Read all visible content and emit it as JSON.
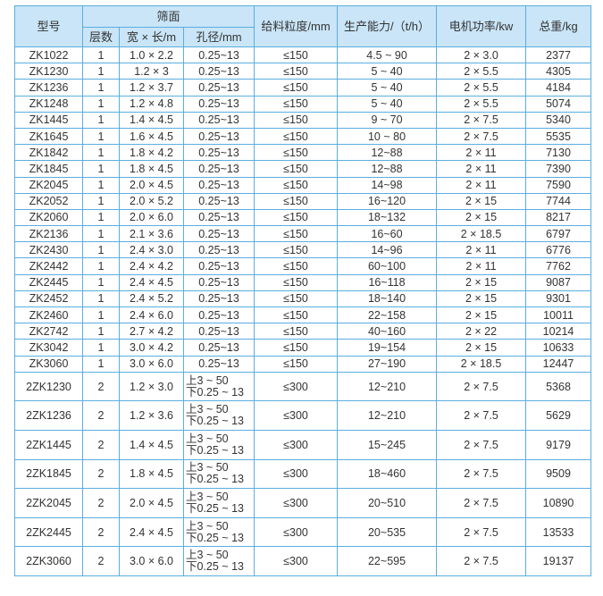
{
  "table": {
    "headers": {
      "model": "型号",
      "screen_surface": "筛面",
      "layers": "层数",
      "size": "宽 × 长/m",
      "aperture": "孔径/mm",
      "feed_size": "给料粒度/mm",
      "capacity": "生产能力/（t/h）",
      "motor_power": "电机功率/kw",
      "weight": "总重/kg"
    },
    "single_rows": [
      [
        "ZK1022",
        "1",
        "1.0 × 2.2",
        "0.25~13",
        "≤150",
        "4.5 ~ 90",
        "2 × 3.0",
        "2377"
      ],
      [
        "ZK1230",
        "1",
        "1.2 × 3",
        "0.25~13",
        "≤150",
        "5 ~ 40",
        "2 × 5.5",
        "4305"
      ],
      [
        "ZK1236",
        "1",
        "1.2 × 3.7",
        "0.25~13",
        "≤150",
        "5 ~ 40",
        "2 × 5.5",
        "4184"
      ],
      [
        "ZK1248",
        "1",
        "1.2 × 4.8",
        "0.25~13",
        "≤150",
        "5 ~ 40",
        "2 × 5.5",
        "5074"
      ],
      [
        "ZK1445",
        "1",
        "1.4 × 4.5",
        "0.25~13",
        "≤150",
        "9 ~ 70",
        "2 × 7.5",
        "5340"
      ],
      [
        "ZK1645",
        "1",
        "1.6 × 4.5",
        "0.25~13",
        "≤150",
        "10 ~ 80",
        "2 × 7.5",
        "5535"
      ],
      [
        "ZK1842",
        "1",
        "1.8 × 4.2",
        "0.25~13",
        "≤150",
        "12~88",
        "2 × 11",
        "7130"
      ],
      [
        "ZK1845",
        "1",
        "1.8 × 4.5",
        "0.25~13",
        "≤150",
        "12~88",
        "2 × 11",
        "7390"
      ],
      [
        "ZK2045",
        "1",
        "2.0 × 4.5",
        "0.25~13",
        "≤150",
        "14~98",
        "2 × 11",
        "7590"
      ],
      [
        "ZK2052",
        "1",
        "2.0 × 5.2",
        "0.25~13",
        "≤150",
        "16~120",
        "2 × 15",
        "7744"
      ],
      [
        "ZK2060",
        "1",
        "2.0 × 6.0",
        "0.25~13",
        "≤150",
        "18~132",
        "2 × 15",
        "8217"
      ],
      [
        "ZK2136",
        "1",
        "2.1 × 3.6",
        "0.25~13",
        "≤150",
        "16~60",
        "2 × 18.5",
        "6797"
      ],
      [
        "ZK2430",
        "1",
        "2.4 × 3.0",
        "0.25~13",
        "≤150",
        "14~96",
        "2 × 11",
        "6776"
      ],
      [
        "ZK2442",
        "1",
        "2.4 × 4.2",
        "0.25~13",
        "≤150",
        "60~100",
        "2 × 11",
        "7762"
      ],
      [
        "ZK2445",
        "1",
        "2.4 × 4.5",
        "0.25~13",
        "≤150",
        "16~118",
        "2 × 15",
        "9087"
      ],
      [
        "ZK2452",
        "1",
        "2.4 × 5.2",
        "0.25~13",
        "≤150",
        "18~140",
        "2 × 15",
        "9301"
      ],
      [
        "ZK2460",
        "1",
        "2.4 × 6.0",
        "0.25~13",
        "≤150",
        "22~158",
        "2 × 15",
        "10011"
      ],
      [
        "ZK2742",
        "1",
        "2.7 × 4.2",
        "0.25~13",
        "≤150",
        "40~160",
        "2 × 22",
        "10214"
      ],
      [
        "ZK3042",
        "1",
        "3.0 × 4.2",
        "0.25~13",
        "≤150",
        "19~154",
        "2 × 15",
        "10633"
      ],
      [
        "ZK3060",
        "1",
        "3.0 × 6.0",
        "0.25~13",
        "≤150",
        "27~190",
        "2 × 18.5",
        "12447"
      ]
    ],
    "double_rows": [
      [
        "2ZK1230",
        "2",
        "1.2 × 3.0",
        "上3 ~ 50",
        "下0.25 ~ 13",
        "≤300",
        "12~210",
        "2 × 7.5",
        "5368"
      ],
      [
        "2ZK1236",
        "2",
        "1.2 × 3.6",
        "上3 ~ 50",
        "下0.25 ~ 13",
        "≤300",
        "12~210",
        "2 × 7.5",
        "5629"
      ],
      [
        "2ZK1445",
        "2",
        "1.4 × 4.5",
        "上3 ~ 50",
        "下0.25 ~ 13",
        "≤300",
        "15~245",
        "2 × 7.5",
        "9179"
      ],
      [
        "2ZK1845",
        "2",
        "1.8 × 4.5",
        "上3 ~ 50",
        "下0.25 ~ 13",
        "≤300",
        "18~460",
        "2 × 7.5",
        "9509"
      ],
      [
        "2ZK2045",
        "2",
        "2.0 × 4.5",
        "上3 ~ 50",
        "下0.25 ~ 13",
        "≤300",
        "20~510",
        "2 × 7.5",
        "10890"
      ],
      [
        "2ZK2445",
        "2",
        "2.4 × 4.5",
        "上3 ~ 50",
        "下0.25 ~ 13",
        "≤300",
        "20~535",
        "2 × 7.5",
        "13533"
      ],
      [
        "2ZK3060",
        "2",
        "3.0 × 6.0",
        "上3 ~ 50",
        "下0.25 ~ 13",
        "≤300",
        "22~595",
        "2 × 7.5",
        "19137"
      ]
    ]
  },
  "colors": {
    "header_bg": "#c9e5f7",
    "border": "#5aaee0",
    "text": "#333333"
  }
}
